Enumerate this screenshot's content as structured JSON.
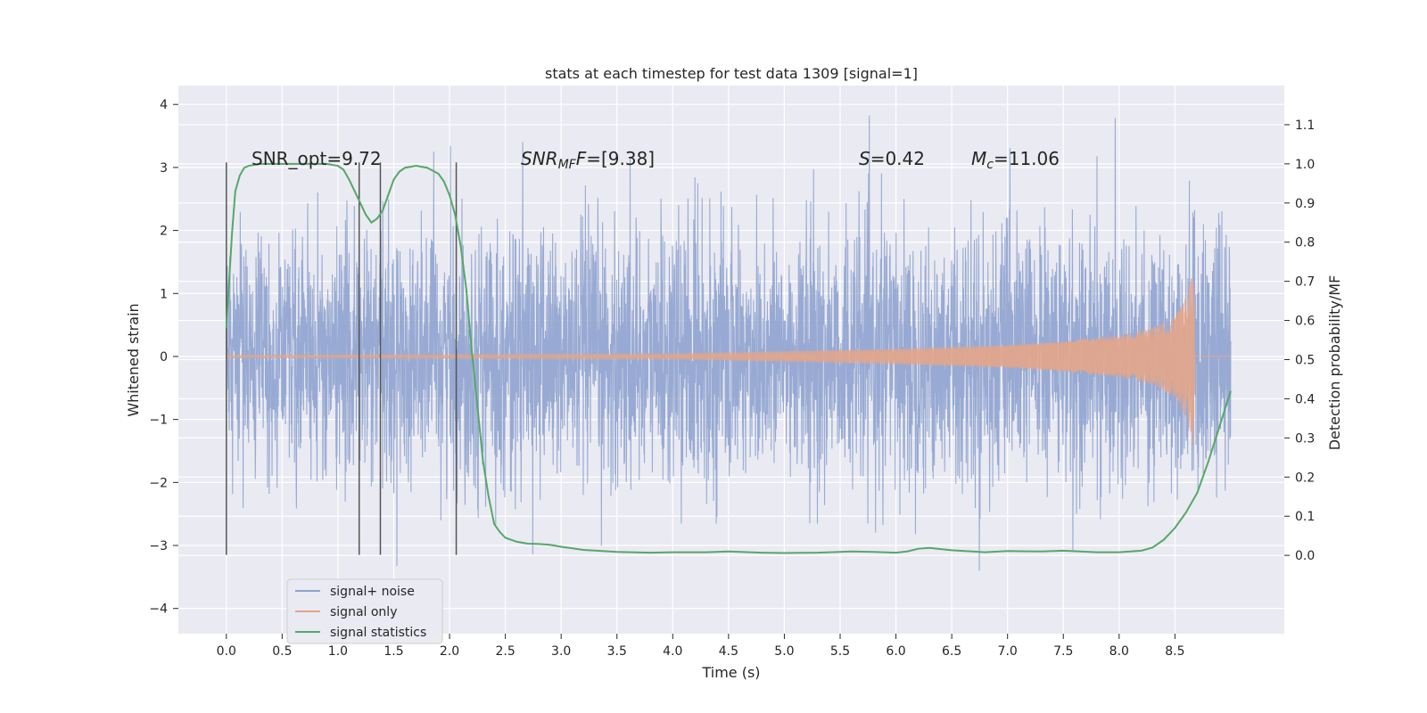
{
  "chart_data": {
    "type": "line",
    "title": "stats at each timestep for test data 1309 [signal=1]",
    "xlabel": "Time (s)",
    "ylabel": "Whitened strain",
    "ylabel_right": "Detection probability/MF",
    "xlim": [
      -0.43,
      9.48
    ],
    "ylim": [
      -4.4,
      4.3
    ],
    "ylim_right": [
      -0.2,
      1.2
    ],
    "x_ticks": [
      0.0,
      0.5,
      1.0,
      1.5,
      2.0,
      2.5,
      3.0,
      3.5,
      4.0,
      4.5,
      5.0,
      5.5,
      6.0,
      6.5,
      7.0,
      7.5,
      8.0,
      8.5
    ],
    "x_tick_labels": [
      "0.0",
      "0.5",
      "1.0",
      "1.5",
      "2.0",
      "2.5",
      "3.0",
      "3.5",
      "4.0",
      "4.5",
      "5.0",
      "5.5",
      "6.0",
      "6.5",
      "7.0",
      "7.5",
      "8.0",
      "8.5"
    ],
    "y_ticks": [
      -4,
      -3,
      -2,
      -1,
      0,
      1,
      2,
      3,
      4
    ],
    "y_tick_labels": [
      "−4",
      "−3",
      "−2",
      "−1",
      "0",
      "1",
      "2",
      "3",
      "4"
    ],
    "y_ticks_right": [
      0.0,
      0.1,
      0.2,
      0.3,
      0.4,
      0.5,
      0.6,
      0.7,
      0.8,
      0.9,
      1.0,
      1.1
    ],
    "y_tick_labels_right": [
      "0.0",
      "0.1",
      "0.2",
      "0.3",
      "0.4",
      "0.5",
      "0.6",
      "0.7",
      "0.8",
      "0.9",
      "1.0",
      "1.1"
    ],
    "grid": true,
    "legend_position": "lower-left",
    "legend": [
      {
        "label": "signal+ noise",
        "color": "#8fa3cf"
      },
      {
        "label": "signal only",
        "color": "#e3a58a"
      },
      {
        "label": "signal statistics",
        "color": "#55a868"
      }
    ],
    "annotations": {
      "snr_opt": "SNR_opt=9.72",
      "snr_mf_sym": "SNR",
      "snr_mf_sub": "MF",
      "snr_mf_sub2": "F",
      "snr_mf_val": "=[9.38]",
      "s_sym": "S",
      "s_val": "=0.42",
      "mc_sym": "M",
      "mc_sub": "c",
      "mc_val": "=11.06"
    },
    "vertical_lines_x": [
      0.0,
      1.19,
      1.38,
      2.06
    ],
    "series": [
      {
        "name": "signal statistics",
        "axis": "right",
        "color": "#55a868",
        "x": [
          0.0,
          0.05,
          0.08,
          0.12,
          0.16,
          0.2,
          0.3,
          0.5,
          0.7,
          0.9,
          1.0,
          1.05,
          1.1,
          1.15,
          1.2,
          1.25,
          1.3,
          1.35,
          1.4,
          1.45,
          1.5,
          1.55,
          1.6,
          1.7,
          1.8,
          1.9,
          1.95,
          2.0,
          2.05,
          2.1,
          2.15,
          2.2,
          2.25,
          2.3,
          2.35,
          2.4,
          2.45,
          2.5,
          2.55,
          2.6,
          2.7,
          2.8,
          2.9,
          3.0,
          3.2,
          3.5,
          3.8,
          4.0,
          4.3,
          4.5,
          4.8,
          5.0,
          5.3,
          5.6,
          5.8,
          6.0,
          6.1,
          6.2,
          6.3,
          6.5,
          6.8,
          7.0,
          7.3,
          7.5,
          7.8,
          8.0,
          8.2,
          8.3,
          8.4,
          8.5,
          8.6,
          8.7,
          8.8,
          8.9,
          9.0
        ],
        "y": [
          0.58,
          0.82,
          0.93,
          0.97,
          0.99,
          0.995,
          1.0,
          1.0,
          1.0,
          1.0,
          0.995,
          0.985,
          0.96,
          0.93,
          0.9,
          0.87,
          0.85,
          0.86,
          0.88,
          0.92,
          0.96,
          0.98,
          0.99,
          0.995,
          0.99,
          0.975,
          0.955,
          0.92,
          0.87,
          0.79,
          0.68,
          0.52,
          0.38,
          0.24,
          0.15,
          0.08,
          0.06,
          0.045,
          0.04,
          0.035,
          0.03,
          0.029,
          0.027,
          0.022,
          0.014,
          0.009,
          0.007,
          0.008,
          0.008,
          0.01,
          0.007,
          0.006,
          0.007,
          0.01,
          0.009,
          0.007,
          0.01,
          0.017,
          0.019,
          0.013,
          0.008,
          0.011,
          0.01,
          0.012,
          0.008,
          0.008,
          0.012,
          0.02,
          0.04,
          0.07,
          0.11,
          0.16,
          0.24,
          0.33,
          0.42
        ]
      },
      {
        "name": "signal only",
        "axis": "left",
        "color": "#e3a58a",
        "description_amp_envelope_t": [
          0.0,
          4.0,
          5.0,
          6.0,
          7.0,
          7.5,
          8.0,
          8.3,
          8.5,
          8.6,
          8.65,
          8.67,
          8.68
        ],
        "description_amp_envelope_a": [
          0.02,
          0.04,
          0.08,
          0.12,
          0.18,
          0.24,
          0.33,
          0.45,
          0.65,
          0.95,
          1.3,
          1.5,
          0.0
        ]
      },
      {
        "name": "signal+ noise",
        "axis": "left",
        "color": "#8fa3cf",
        "x_range": [
          0.0,
          9.0
        ],
        "noise_std": 1.0
      }
    ]
  }
}
